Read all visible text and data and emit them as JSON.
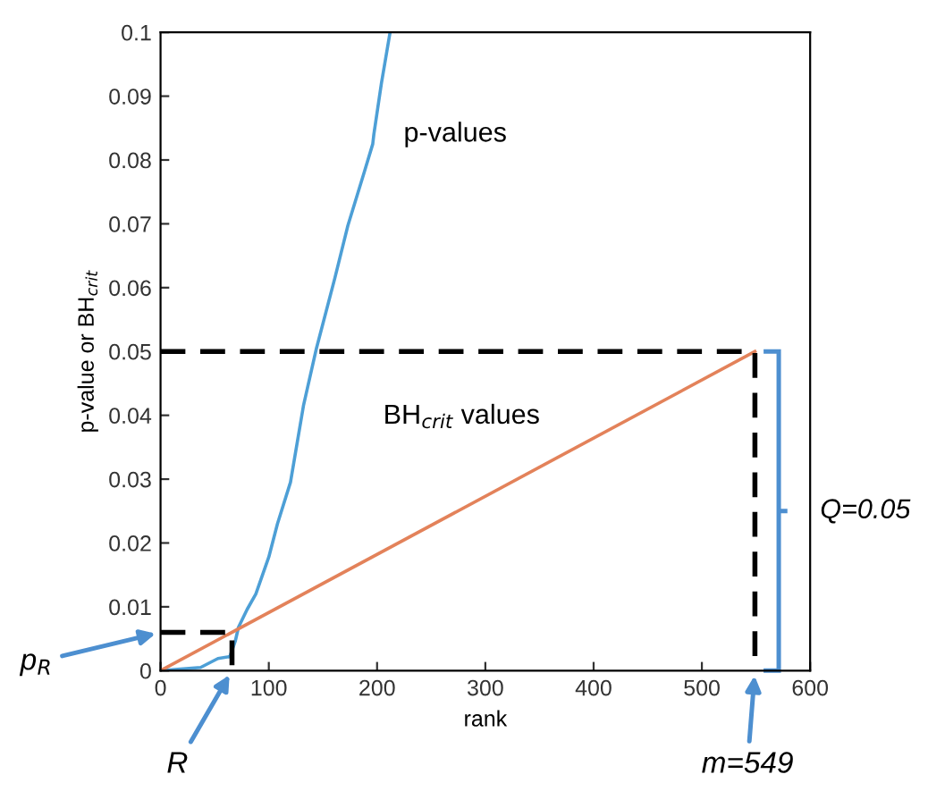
{
  "chart_data": {
    "type": "line",
    "xlabel": "rank",
    "ylabel": "p-value or BH$_{crit}$",
    "xlim": [
      0,
      600
    ],
    "xticks": [
      0,
      100,
      200,
      300,
      400,
      500,
      600
    ],
    "ylim": [
      0,
      0.1
    ],
    "yticks": [
      0,
      0.01,
      0.02,
      0.03,
      0.04,
      0.05,
      0.06,
      0.07,
      0.08,
      0.09,
      0.1
    ],
    "grid": false,
    "legend": false,
    "marker": "none",
    "series": [
      {
        "name": "p-values",
        "color": "#4d9fd6",
        "line_style": "solid",
        "x": [
          0,
          37,
          53,
          64,
          69,
          72,
          80,
          88,
          100,
          108,
          120,
          132,
          144,
          161,
          173,
          188,
          196,
          197,
          204,
          212
        ],
        "values": [
          0,
          0.0005,
          0.0019,
          0.0022,
          0.0046,
          0.0068,
          0.0096,
          0.012,
          0.0178,
          0.023,
          0.0295,
          0.0415,
          0.0505,
          0.0615,
          0.0697,
          0.078,
          0.0825,
          0.084,
          0.092,
          0.1
        ]
      },
      {
        "name": "BH$_{crit}$ values",
        "color": "#e3825a",
        "line_style": "solid",
        "x": [
          0,
          549
        ],
        "values": [
          0,
          0.05
        ]
      },
      {
        "color": "#000000",
        "line_style": "dashed",
        "x": [
          0,
          549,
          549
        ],
        "values": [
          0.05,
          0.05,
          0
        ]
      },
      {
        "color": "#000000",
        "line_style": "dashed",
        "x": [
          0,
          66,
          66
        ],
        "values": [
          0.006,
          0.006,
          0
        ]
      }
    ],
    "annotations": [
      {
        "text": "p$_{R}$",
        "x": 0,
        "y": 0.006
      },
      {
        "text": "R",
        "x": 66,
        "y": 0
      },
      {
        "text": "m=549",
        "x": 549,
        "y": 0
      },
      "Q=0.05"
    ]
  }
}
